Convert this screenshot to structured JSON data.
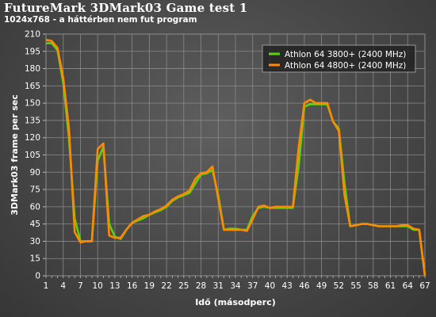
{
  "chart_data": {
    "type": "line",
    "title": "FutureMark 3DMark03 Game test 1",
    "subtitle": "1024x768 - a háttérben nem fut program",
    "xlabel": "Idő (másodperc)",
    "ylabel": "3DMark03 frame per sec",
    "xlim": [
      1,
      67
    ],
    "ylim": [
      0,
      210
    ],
    "xticks": [
      1,
      4,
      7,
      10,
      13,
      16,
      19,
      22,
      25,
      28,
      31,
      34,
      37,
      40,
      43,
      46,
      49,
      52,
      55,
      58,
      61,
      64,
      67
    ],
    "yticks": [
      0,
      15,
      30,
      45,
      60,
      75,
      90,
      105,
      120,
      135,
      150,
      165,
      180,
      195,
      210
    ],
    "grid": true,
    "legend_position": "top-right",
    "colors": {
      "athlon3800": "#5bd313",
      "athlon4800": "#ff8a00",
      "grid": "#8a8a8a"
    },
    "x": [
      1,
      2,
      3,
      4,
      5,
      6,
      7,
      8,
      9,
      10,
      11,
      12,
      13,
      14,
      15,
      16,
      17,
      18,
      19,
      20,
      21,
      22,
      23,
      24,
      25,
      26,
      27,
      28,
      29,
      30,
      31,
      32,
      33,
      34,
      35,
      36,
      37,
      38,
      39,
      40,
      41,
      42,
      43,
      44,
      45,
      46,
      47,
      48,
      49,
      50,
      51,
      52,
      53,
      54,
      55,
      56,
      57,
      58,
      59,
      60,
      61,
      62,
      63,
      64,
      65,
      66,
      67
    ],
    "series": [
      {
        "name": "Athlon 64 3800+ (2400 MHz)",
        "color": "#5bd313",
        "values": [
          202,
          202,
          196,
          168,
          120,
          50,
          30,
          30,
          30,
          100,
          112,
          45,
          34,
          32,
          40,
          46,
          48,
          50,
          53,
          55,
          57,
          60,
          65,
          68,
          70,
          72,
          80,
          88,
          89,
          92,
          70,
          40,
          41,
          41,
          40,
          40,
          52,
          59,
          60,
          59,
          59,
          59,
          59,
          59,
          95,
          147,
          149,
          149,
          149,
          149,
          134,
          128,
          80,
          43,
          44,
          45,
          45,
          44,
          43,
          43,
          43,
          43,
          43,
          43,
          40,
          40,
          0
        ]
      },
      {
        "name": "Athlon 64 4800+ (2400 MHz)",
        "color": "#ff8a00",
        "values": [
          205,
          204,
          198,
          172,
          128,
          38,
          29,
          30,
          30,
          110,
          115,
          35,
          33,
          33,
          40,
          46,
          49,
          52,
          53,
          56,
          58,
          61,
          66,
          69,
          71,
          74,
          84,
          89,
          90,
          95,
          67,
          40,
          40,
          40,
          40,
          39,
          49,
          60,
          61,
          59,
          60,
          60,
          60,
          60,
          111,
          150,
          153,
          150,
          150,
          150,
          134,
          126,
          70,
          43,
          44,
          45,
          45,
          44,
          43,
          43,
          43,
          43,
          44,
          44,
          41,
          40,
          0
        ]
      }
    ]
  }
}
